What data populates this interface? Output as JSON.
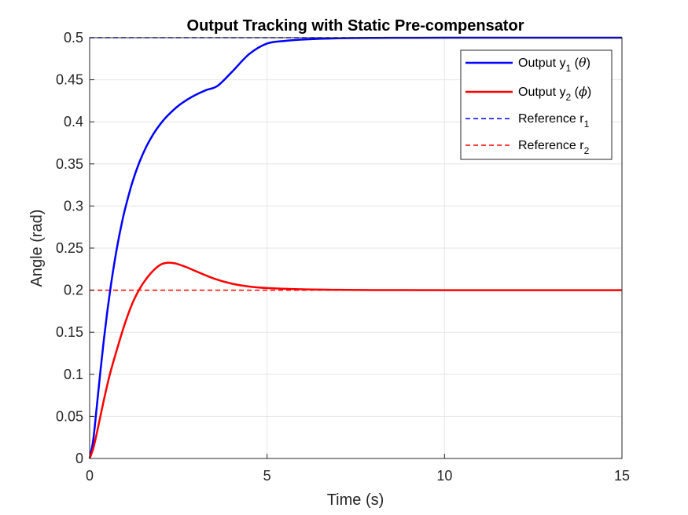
{
  "chart_data": {
    "type": "line",
    "title": "Output Tracking with Static Pre-compensator",
    "xlabel": "Time (s)",
    "ylabel": "Angle (rad)",
    "xlim": [
      0,
      15
    ],
    "ylim": [
      0,
      0.5
    ],
    "grid": true,
    "legend_position": "top-right",
    "xticks": [
      0,
      5,
      10,
      15
    ],
    "xtick_labels": [
      "0",
      "5",
      "10",
      "15"
    ],
    "yticks": [
      0,
      0.05,
      0.1,
      0.15,
      0.2,
      0.25,
      0.3,
      0.35,
      0.4,
      0.45,
      0.5
    ],
    "ytick_labels": [
      "0",
      "0.05",
      "0.1",
      "0.15",
      "0.2",
      "0.25",
      "0.3",
      "0.35",
      "0.4",
      "0.45",
      "0.5"
    ],
    "series": [
      {
        "name": "Output y1 (θ)",
        "legend": {
          "prefix": "Output y",
          "sub": "1",
          "suffix_open": " (",
          "greek": "θ",
          "suffix_close": ")"
        },
        "color": "#0000ff",
        "style": "solid",
        "x": [
          0,
          0.1,
          0.2,
          0.3,
          0.4,
          0.5,
          0.6,
          0.7,
          0.8,
          0.9,
          1.0,
          1.2,
          1.4,
          1.6,
          1.8,
          2.0,
          2.2,
          2.5,
          2.8,
          3.0,
          3.3,
          3.6,
          4.0,
          4.5,
          5.0,
          5.5,
          6.0,
          7.0,
          8.0,
          9.0,
          10.0,
          12.0,
          15.0
        ],
        "y": [
          0,
          0.0214,
          0.061,
          0.1022,
          0.1408,
          0.1755,
          0.2062,
          0.2333,
          0.2572,
          0.2782,
          0.2968,
          0.3277,
          0.3518,
          0.3708,
          0.3858,
          0.3978,
          0.4075,
          0.4191,
          0.4277,
          0.4323,
          0.438,
          0.4426,
          0.4589,
          0.4807,
          0.4931,
          0.4962,
          0.4978,
          0.4993,
          0.4998,
          0.4999,
          0.5,
          0.5,
          0.5
        ]
      },
      {
        "name": "Output y2 (ϕ)",
        "legend": {
          "prefix": "Output y",
          "sub": "2",
          "suffix_open": " (",
          "greek": "ϕ",
          "suffix_close": ")"
        },
        "color": "#ff0000",
        "style": "solid",
        "x": [
          0,
          0.1,
          0.2,
          0.3,
          0.4,
          0.5,
          0.6,
          0.8,
          1.0,
          1.2,
          1.4,
          1.6,
          1.8,
          2.0,
          2.2,
          2.4,
          2.6,
          2.8,
          3.0,
          3.5,
          4.0,
          4.5,
          5.0,
          6.0,
          7.0,
          8.0,
          10.0,
          15.0
        ],
        "y": [
          0,
          0.0116,
          0.0297,
          0.0495,
          0.0693,
          0.0878,
          0.1047,
          0.1339,
          0.1611,
          0.1839,
          0.2009,
          0.2137,
          0.2235,
          0.2303,
          0.2326,
          0.2319,
          0.2293,
          0.2261,
          0.2224,
          0.2138,
          0.2078,
          0.2043,
          0.2025,
          0.201,
          0.2004,
          0.2001,
          0.2,
          0.2
        ]
      },
      {
        "name": "Reference r1",
        "legend": {
          "prefix": "Reference r",
          "sub": "1"
        },
        "color": "#0000ff",
        "style": "dashed",
        "x": [
          0,
          15
        ],
        "y": [
          0.5,
          0.5
        ]
      },
      {
        "name": "Reference r2",
        "legend": {
          "prefix": "Reference r",
          "sub": "2"
        },
        "color": "#ff0000",
        "style": "dashed",
        "x": [
          0,
          15
        ],
        "y": [
          0.2,
          0.2
        ]
      }
    ]
  }
}
